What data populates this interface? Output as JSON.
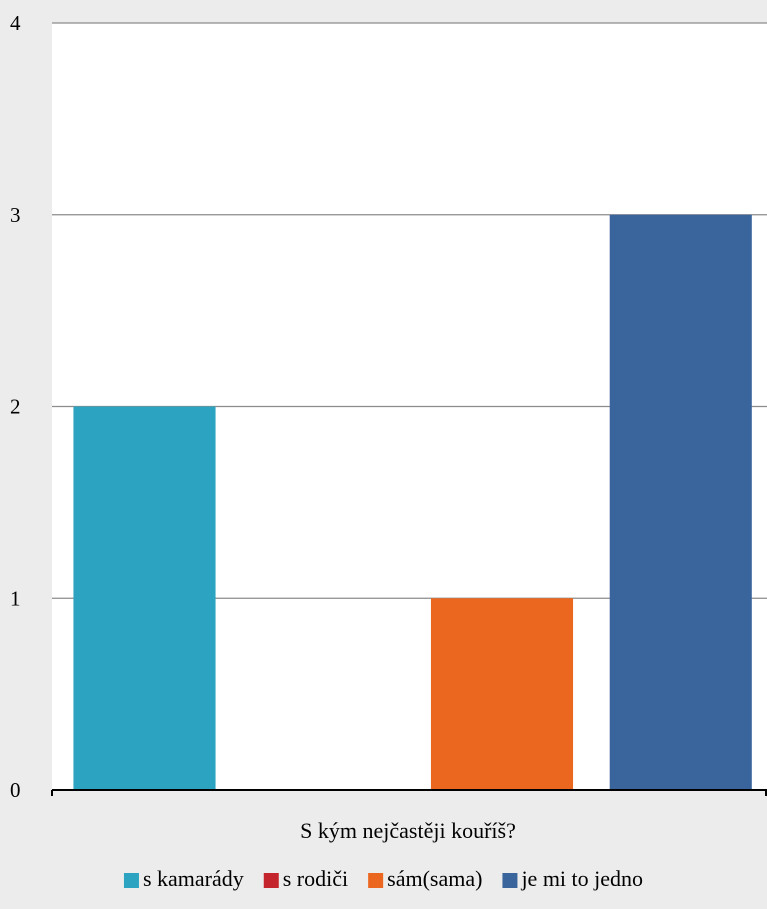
{
  "chart_data": {
    "type": "bar",
    "title": "",
    "xlabel": "S kým nejčastěji kouříš?",
    "ylabel": "",
    "ylim": [
      0,
      4
    ],
    "yticks": [
      0,
      1,
      2,
      3,
      4
    ],
    "grid": true,
    "legend_position": "bottom",
    "series": [
      {
        "name": "s kamarády",
        "values": [
          2
        ],
        "color": "#2ca3c0"
      },
      {
        "name": "s rodiči",
        "values": [
          0
        ],
        "color": "#c4242b"
      },
      {
        "name": "sám(sama)",
        "values": [
          1
        ],
        "color": "#eb661f"
      },
      {
        "name": "je mi to jedno",
        "values": [
          3
        ],
        "color": "#3a659c"
      }
    ]
  }
}
